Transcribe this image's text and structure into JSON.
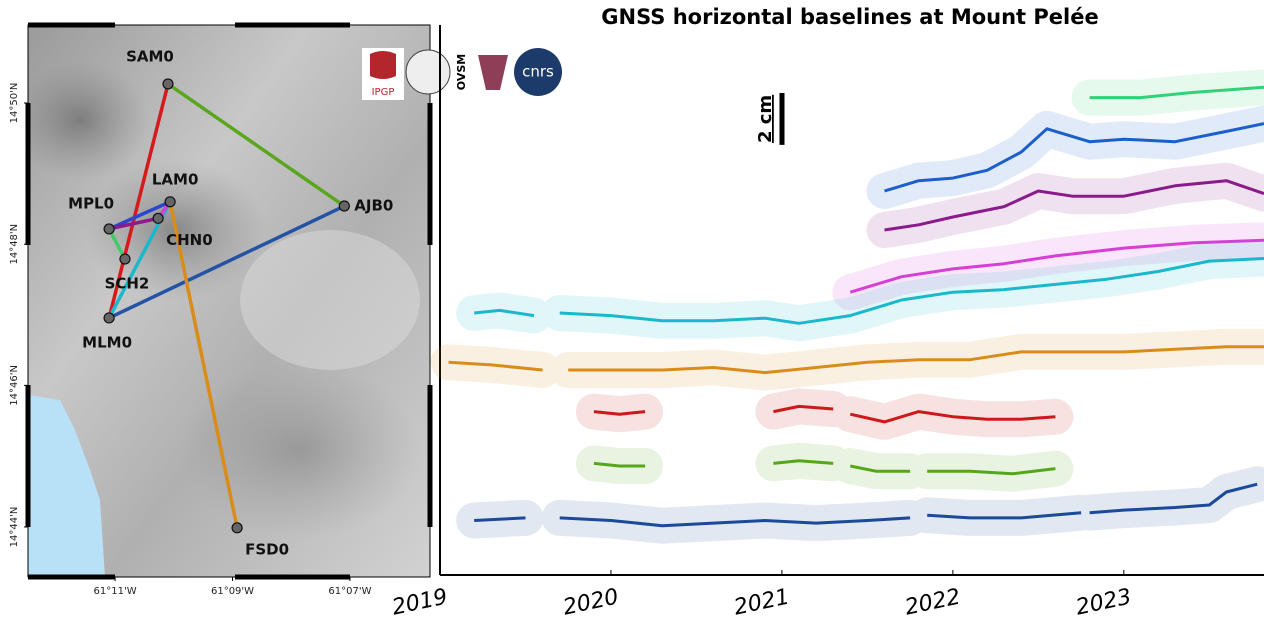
{
  "chart_data": [
    {
      "type": "map",
      "xlim": [
        -61.208,
        -61.094
      ],
      "ylim": [
        14.7215,
        14.8517
      ],
      "xticks": [
        {
          "value": -61.1833,
          "label": "61°11'W"
        },
        {
          "value": -61.15,
          "label": "61°09'W"
        },
        {
          "value": -61.1167,
          "label": "61°07'W"
        }
      ],
      "yticks": [
        {
          "value": 14.7333,
          "label": "14°44'N"
        },
        {
          "value": 14.7667,
          "label": "14°46'N"
        },
        {
          "value": 14.8,
          "label": "14°48'N"
        },
        {
          "value": 14.8333,
          "label": "14°50'N"
        }
      ],
      "stations": [
        {
          "name": "SAM0",
          "lon": -61.1683,
          "lat": 14.8378
        },
        {
          "name": "LAM0",
          "lon": -61.1677,
          "lat": 14.81
        },
        {
          "name": "AJB0",
          "lon": -61.1183,
          "lat": 14.809
        },
        {
          "name": "MPL0",
          "lon": -61.185,
          "lat": 14.8036
        },
        {
          "name": "CHN0",
          "lon": -61.1711,
          "lat": 14.8061
        },
        {
          "name": "SCH2",
          "lon": -61.1805,
          "lat": 14.7965
        },
        {
          "name": "MLM0",
          "lon": -61.185,
          "lat": 14.7826
        },
        {
          "name": "FSD0",
          "lon": -61.1487,
          "lat": 14.7331
        }
      ],
      "baselines": [
        {
          "from": "SAM0",
          "to": "MLM0",
          "color": "#d7191c"
        },
        {
          "from": "SAM0",
          "to": "AJB0",
          "color": "#5aa61e"
        },
        {
          "from": "AJB0",
          "to": "MLM0",
          "color": "#2453a6"
        },
        {
          "from": "LAM0",
          "to": "FSD0",
          "color": "#d98c1a"
        },
        {
          "from": "LAM0",
          "to": "MPL0",
          "color": "#2b45d0"
        },
        {
          "from": "MPL0",
          "to": "CHN0",
          "color": "#8b1a8b"
        },
        {
          "from": "MPL0",
          "to": "SCH2",
          "color": "#3fcc66"
        },
        {
          "from": "LAM0",
          "to": "MLM0",
          "color": "#1ab8cc"
        },
        {
          "from": "LAM0",
          "to": "CHN0",
          "color": "#d63fd6"
        }
      ],
      "logos": [
        "IPGP",
        "OVSM",
        "cnrs"
      ]
    },
    {
      "type": "line",
      "title": "GNSS horizontal baselines at Mount Pelée",
      "xlim": [
        2019,
        2023.82
      ],
      "xticks": [
        2019,
        2020,
        2021,
        2022,
        2023
      ],
      "ylim": [
        0,
        21.2
      ],
      "scale_bar": {
        "value": 2,
        "label": "2 cm"
      },
      "series": [
        {
          "color": "#33d177",
          "x": [
            2022.8,
            2023.1,
            2023.4,
            2023.82
          ],
          "values": [
            18.4,
            18.4,
            18.6,
            18.8
          ]
        },
        {
          "color": "#1a5fcc",
          "x": [
            2021.6,
            2021.8,
            2022,
            2022.2,
            2022.4,
            2022.55,
            2022.8,
            2023,
            2023.3,
            2023.6,
            2023.82
          ],
          "values": [
            14.8,
            15.2,
            15.3,
            15.6,
            16.3,
            17.2,
            16.7,
            16.8,
            16.7,
            17.1,
            17.4
          ]
        },
        {
          "color": "#8b1a8b",
          "x": [
            2021.6,
            2021.8,
            2022,
            2022.3,
            2022.5,
            2022.7,
            2023,
            2023.3,
            2023.6,
            2023.82
          ],
          "values": [
            13.3,
            13.5,
            13.8,
            14.2,
            14.8,
            14.6,
            14.6,
            15.0,
            15.2,
            14.7
          ]
        },
        {
          "color": "#d63fd6",
          "x": [
            2021.4,
            2021.7,
            2022,
            2022.3,
            2022.6,
            2023,
            2023.4,
            2023.82
          ],
          "values": [
            10.9,
            11.5,
            11.8,
            12.0,
            12.3,
            12.6,
            12.8,
            12.9
          ]
        },
        {
          "color": "#1ab8cc",
          "x": [
            2019.2,
            2019.35,
            2019.55,
            2019.6,
            2019.7,
            2020,
            2020.3,
            2020.6,
            2020.9,
            2021.1,
            2021.4,
            2021.7,
            2022,
            2022.3,
            2022.6,
            2022.9,
            2023.2,
            2023.5,
            2023.82
          ],
          "values": [
            10.1,
            10.2,
            10.0,
            null,
            10.1,
            10.0,
            9.8,
            9.8,
            9.9,
            9.7,
            10.0,
            10.6,
            10.9,
            11.0,
            11.2,
            11.4,
            11.7,
            12.1,
            12.2
          ]
        },
        {
          "color": "#d98c1a",
          "x": [
            2019.05,
            2019.3,
            2019.6,
            2019.65,
            2019.75,
            2020,
            2020.3,
            2020.6,
            2020.9,
            2021.2,
            2021.5,
            2021.8,
            2022.1,
            2022.4,
            2022.7,
            2023,
            2023.3,
            2023.6,
            2023.82
          ],
          "values": [
            8.2,
            8.1,
            7.9,
            null,
            7.9,
            7.9,
            7.9,
            8.0,
            7.8,
            8.0,
            8.2,
            8.3,
            8.3,
            8.6,
            8.6,
            8.6,
            8.7,
            8.8,
            8.8
          ]
        },
        {
          "color": "#cc1a1a",
          "x": [
            2019.9,
            2020.05,
            2020.2,
            2020.6,
            2020.95,
            2021.1,
            2021.3,
            2021.32,
            2021.4,
            2021.6,
            2021.8,
            2022,
            2022.2,
            2022.4,
            2022.6
          ],
          "values": [
            6.3,
            6.2,
            6.3,
            null,
            6.3,
            6.5,
            6.4,
            null,
            6.2,
            5.9,
            6.3,
            6.1,
            6.0,
            6.0,
            6.1
          ]
        },
        {
          "color": "#55a61a",
          "x": [
            2019.9,
            2020.05,
            2020.2,
            2020.6,
            2020.95,
            2021.1,
            2021.3,
            2021.35,
            2021.4,
            2021.55,
            2021.75,
            2021.8,
            2021.85,
            2022.1,
            2022.35,
            2022.6
          ],
          "values": [
            4.3,
            4.2,
            4.2,
            null,
            4.3,
            4.4,
            4.3,
            null,
            4.2,
            4.0,
            4.0,
            null,
            4.0,
            4.0,
            3.9,
            4.1
          ]
        },
        {
          "color": "#1a4a99",
          "x": [
            2019.2,
            2019.5,
            2019.6,
            2019.7,
            2020,
            2020.3,
            2020.6,
            2020.9,
            2021.2,
            2021.5,
            2021.75,
            2021.8,
            2021.85,
            2022.1,
            2022.4,
            2022.75,
            2022.78,
            2022.8,
            2023,
            2023.3,
            2023.5,
            2023.6,
            2023.78
          ],
          "values": [
            2.1,
            2.2,
            null,
            2.2,
            2.1,
            1.9,
            2.0,
            2.1,
            2.0,
            2.1,
            2.2,
            null,
            2.3,
            2.2,
            2.2,
            2.4,
            null,
            2.4,
            2.5,
            2.6,
            2.7,
            3.2,
            3.5
          ]
        }
      ]
    }
  ]
}
